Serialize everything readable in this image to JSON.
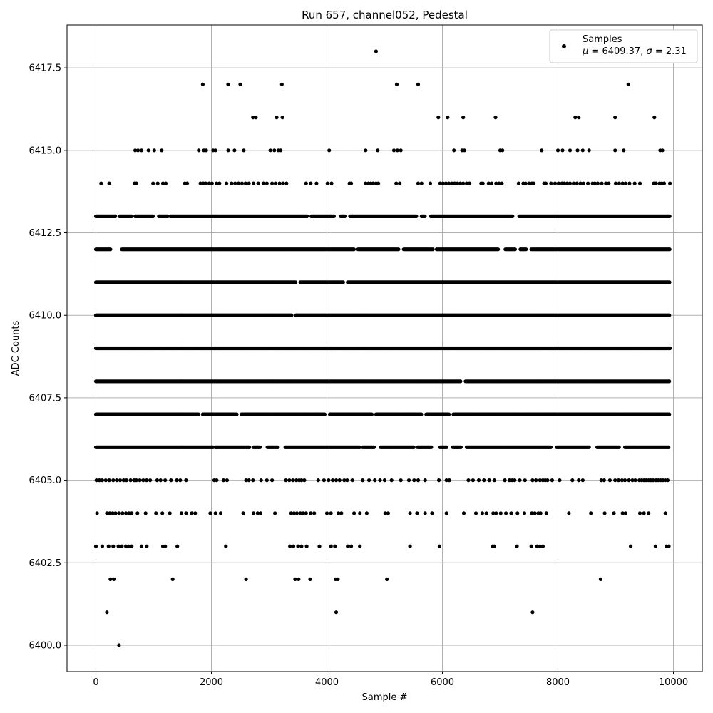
{
  "chart_data": {
    "type": "scatter",
    "title": "Run 657, channel052, Pedestal",
    "xlabel": "Sample #",
    "ylabel": "ADC Counts",
    "xlim": [
      -500,
      10500
    ],
    "ylim": [
      6399.2,
      6418.8
    ],
    "xticks": [
      0,
      2000,
      4000,
      6000,
      8000,
      10000
    ],
    "xtick_labels": [
      "0",
      "2000",
      "4000",
      "6000",
      "8000",
      "10000"
    ],
    "yticks": [
      6400.0,
      6402.5,
      6405.0,
      6407.5,
      6410.0,
      6412.5,
      6415.0,
      6417.5
    ],
    "ytick_labels": [
      "6400.0",
      "6402.5",
      "6405.0",
      "6407.5",
      "6410.0",
      "6412.5",
      "6415.0",
      "6417.5"
    ],
    "grid": true,
    "legend_position": "top-right",
    "legend": {
      "series_label": "Samples",
      "stats_label_parts": [
        "μ",
        " = 6409.37, ",
        "σ",
        " = 2.31"
      ]
    },
    "marker_color": "#000000",
    "series": [
      {
        "name": "Samples",
        "levels": [
          {
            "y": 6400,
            "x": [
              400
            ]
          },
          {
            "y": 6401,
            "x": [
              190,
              4160,
              7560
            ]
          },
          {
            "y": 6402,
            "x": [
              250,
              310,
              1330,
              2600,
              3450,
              3510,
              3710,
              4150,
              4190,
              5040,
              8740
            ]
          },
          {
            "y": 6403,
            "x": [
              0,
              110,
              220,
              300,
              390,
              450,
              520,
              560,
              620,
              790,
              880,
              1160,
              1200,
              1410,
              2250,
              3360,
              3420,
              3500,
              3560,
              3650,
              3870,
              4070,
              4140,
              4360,
              4420,
              4570,
              5440,
              5950,
              6870,
              6900,
              7290,
              7540,
              7640,
              7690,
              7740,
              9260,
              9690,
              9880,
              9920
            ]
          },
          {
            "y": 6404,
            "x": [
              20,
              190,
              240,
              290,
              340,
              400,
              460,
              520,
              570,
              620,
              720,
              860,
              1040,
              1150,
              1280,
              1480,
              1560,
              1660,
              1720,
              1980,
              2070,
              2160,
              2550,
              2730,
              2800,
              2850,
              3100,
              3380,
              3430,
              3480,
              3540,
              3590,
              3640,
              3720,
              3780,
              4000,
              4070,
              4200,
              4250,
              4470,
              4570,
              4690,
              5010,
              5060,
              5440,
              5560,
              5700,
              5820,
              6070,
              6370,
              6580,
              6690,
              6760,
              6880,
              6930,
              7010,
              7100,
              7190,
              7300,
              7420,
              7550,
              7600,
              7660,
              7700,
              7800,
              8190,
              8570,
              8810,
              8970,
              9120,
              9170,
              9420,
              9490,
              9570,
              9860
            ]
          },
          {
            "y": 6405,
            "x": [
              10,
              60,
              110,
              170,
              230,
              300,
              360,
              420,
              480,
              530,
              600,
              660,
              700,
              760,
              820,
              880,
              940,
              1060,
              1120,
              1200,
              1300,
              1400,
              1460,
              1560,
              2050,
              2090,
              2210,
              2270,
              2600,
              2650,
              2720,
              2860,
              2960,
              3050,
              3290,
              3350,
              3410,
              3470,
              3520,
              3560,
              3610,
              3850,
              3950,
              4030,
              4100,
              4160,
              4220,
              4300,
              4350,
              4440,
              4620,
              4730,
              4830,
              4920,
              5000,
              5120,
              5280,
              5420,
              5510,
              5580,
              5700,
              5940,
              6070,
              6120,
              6450,
              6530,
              6630,
              6720,
              6810,
              6900,
              7080,
              7160,
              7210,
              7250,
              7340,
              7430,
              7560,
              7620,
              7690,
              7740,
              7780,
              7820,
              7900,
              8030,
              8250,
              8360,
              8430,
              8750,
              8800,
              8900,
              8990,
              9050,
              9110,
              9160,
              9230,
              9290,
              9340,
              9410,
              9450,
              9490,
              9530,
              9570,
              9610,
              9650,
              9700,
              9740,
              9780,
              9820,
              9860,
              9900
            ]
          }
        ],
        "dense_levels": [
          {
            "y": 6406,
            "segments": [
              [
                0,
                2030
              ],
              [
                2070,
                2660
              ],
              [
                2730,
                2850
              ],
              [
                2970,
                3160
              ],
              [
                3280,
                4570
              ],
              [
                4620,
                4820
              ],
              [
                4930,
                5510
              ],
              [
                5570,
                5810
              ],
              [
                5960,
                6080
              ],
              [
                6180,
                6330
              ],
              [
                6420,
                7880
              ],
              [
                7980,
                8550
              ],
              [
                8680,
                9060
              ],
              [
                9160,
                9920
              ]
            ]
          },
          {
            "y": 6407,
            "segments": [
              [
                0,
                1780
              ],
              [
                1850,
                2440
              ],
              [
                2520,
                3970
              ],
              [
                4050,
                4780
              ],
              [
                4850,
                5640
              ],
              [
                5720,
                6120
              ],
              [
                6190,
                9940
              ]
            ]
          },
          {
            "y": 6408,
            "segments": [
              [
                0,
                6320
              ],
              [
                6400,
                9940
              ]
            ]
          },
          {
            "y": 6409,
            "segments": [
              [
                0,
                9940
              ]
            ]
          },
          {
            "y": 6410,
            "segments": [
              [
                0,
                3390
              ],
              [
                3460,
                9940
              ]
            ]
          },
          {
            "y": 6411,
            "segments": [
              [
                0,
                3470
              ],
              [
                3540,
                4290
              ],
              [
                4360,
                9940
              ]
            ]
          },
          {
            "y": 6412,
            "segments": [
              [
                0,
                260
              ],
              [
                450,
                4470
              ],
              [
                4540,
                5250
              ],
              [
                5330,
                5840
              ],
              [
                5900,
                6970
              ],
              [
                7090,
                7260
              ],
              [
                7350,
                7450
              ],
              [
                7540,
                9940
              ]
            ]
          },
          {
            "y": 6413,
            "segments": [
              [
                0,
                340
              ],
              [
                410,
                620
              ],
              [
                680,
                1000
              ],
              [
                1090,
                1250
              ],
              [
                1290,
                3660
              ],
              [
                3730,
                4130
              ],
              [
                4240,
                4310
              ],
              [
                4400,
                5560
              ],
              [
                5640,
                5700
              ],
              [
                5800,
                7220
              ],
              [
                7330,
                9940
              ]
            ]
          }
        ],
        "sparse_upper_levels": [
          {
            "y": 6414,
            "x": [
              90,
              230,
              670,
              700,
              990,
              1070,
              1160,
              1210,
              1540,
              1580,
              1810,
              1860,
              1900,
              1960,
              2010,
              2090,
              2140,
              2260,
              2350,
              2410,
              2470,
              2530,
              2590,
              2650,
              2730,
              2810,
              2900,
              2960,
              3050,
              3110,
              3180,
              3240,
              3300,
              3640,
              3720,
              3820,
              4010,
              4080,
              4390,
              4420,
              4670,
              4720,
              4760,
              4800,
              4850,
              4890,
              5200,
              5260,
              5580,
              5640,
              5790,
              5960,
              6010,
              6060,
              6110,
              6160,
              6210,
              6260,
              6310,
              6360,
              6420,
              6470,
              6670,
              6700,
              6800,
              6850,
              6930,
              6980,
              7030,
              7320,
              7400,
              7440,
              7500,
              7550,
              7580,
              7760,
              7790,
              7880,
              7950,
              8010,
              8070,
              8110,
              8160,
              8210,
              8270,
              8330,
              8390,
              8440,
              8520,
              8600,
              8640,
              8690,
              8760,
              8830,
              8880,
              9000,
              9060,
              9120,
              9170,
              9240,
              9330,
              9420,
              9660,
              9700,
              9760,
              9800,
              9840,
              9940
            ]
          },
          {
            "y": 6415,
            "x": [
              680,
              730,
              790,
              910,
              1010,
              1140,
              1780,
              1870,
              1910,
              2030,
              2070,
              2290,
              2400,
              2560,
              3020,
              3090,
              3160,
              3200,
              4040,
              4670,
              4880,
              5160,
              5220,
              5280,
              6200,
              6340,
              6380,
              7000,
              7040,
              7720,
              8000,
              8080,
              8210,
              8340,
              8430,
              8540,
              8990,
              9140,
              9770,
              9810
            ]
          },
          {
            "y": 6416,
            "x": [
              2720,
              2770,
              3130,
              3230,
              5930,
              6090,
              6360,
              6920,
              8300,
              8360,
              8990,
              9670
            ]
          },
          {
            "y": 6417,
            "x": [
              1850,
              2290,
              2500,
              3220,
              5210,
              5580,
              9220
            ]
          },
          {
            "y": 6418,
            "x": [
              4850
            ]
          }
        ]
      }
    ]
  }
}
